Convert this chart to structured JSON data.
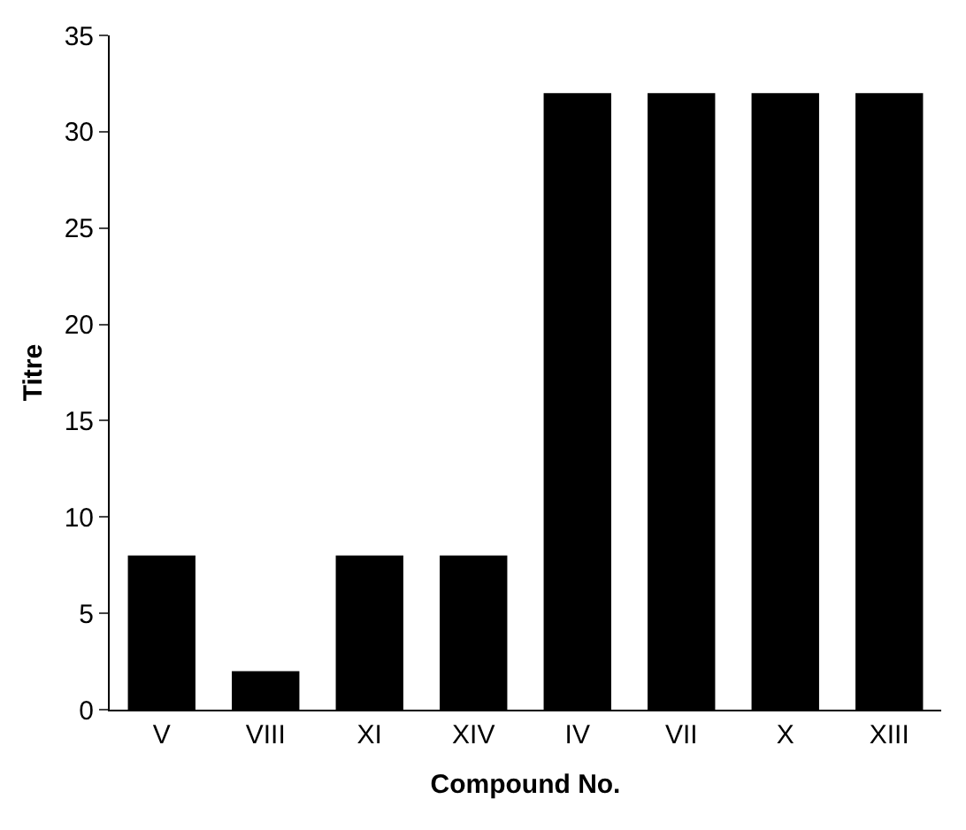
{
  "chart_data": {
    "type": "bar",
    "xlabel": "Compound No.",
    "ylabel": "Titre",
    "categories": [
      "V",
      "VIII",
      "XI",
      "XIV",
      "IV",
      "VII",
      "X",
      "XIII"
    ],
    "values": [
      8,
      2,
      8,
      8,
      32,
      32,
      32,
      32
    ],
    "color": "#000000",
    "ylim": [
      0,
      35
    ],
    "yticks": [
      0,
      5,
      10,
      15,
      20,
      25,
      30,
      35
    ]
  }
}
